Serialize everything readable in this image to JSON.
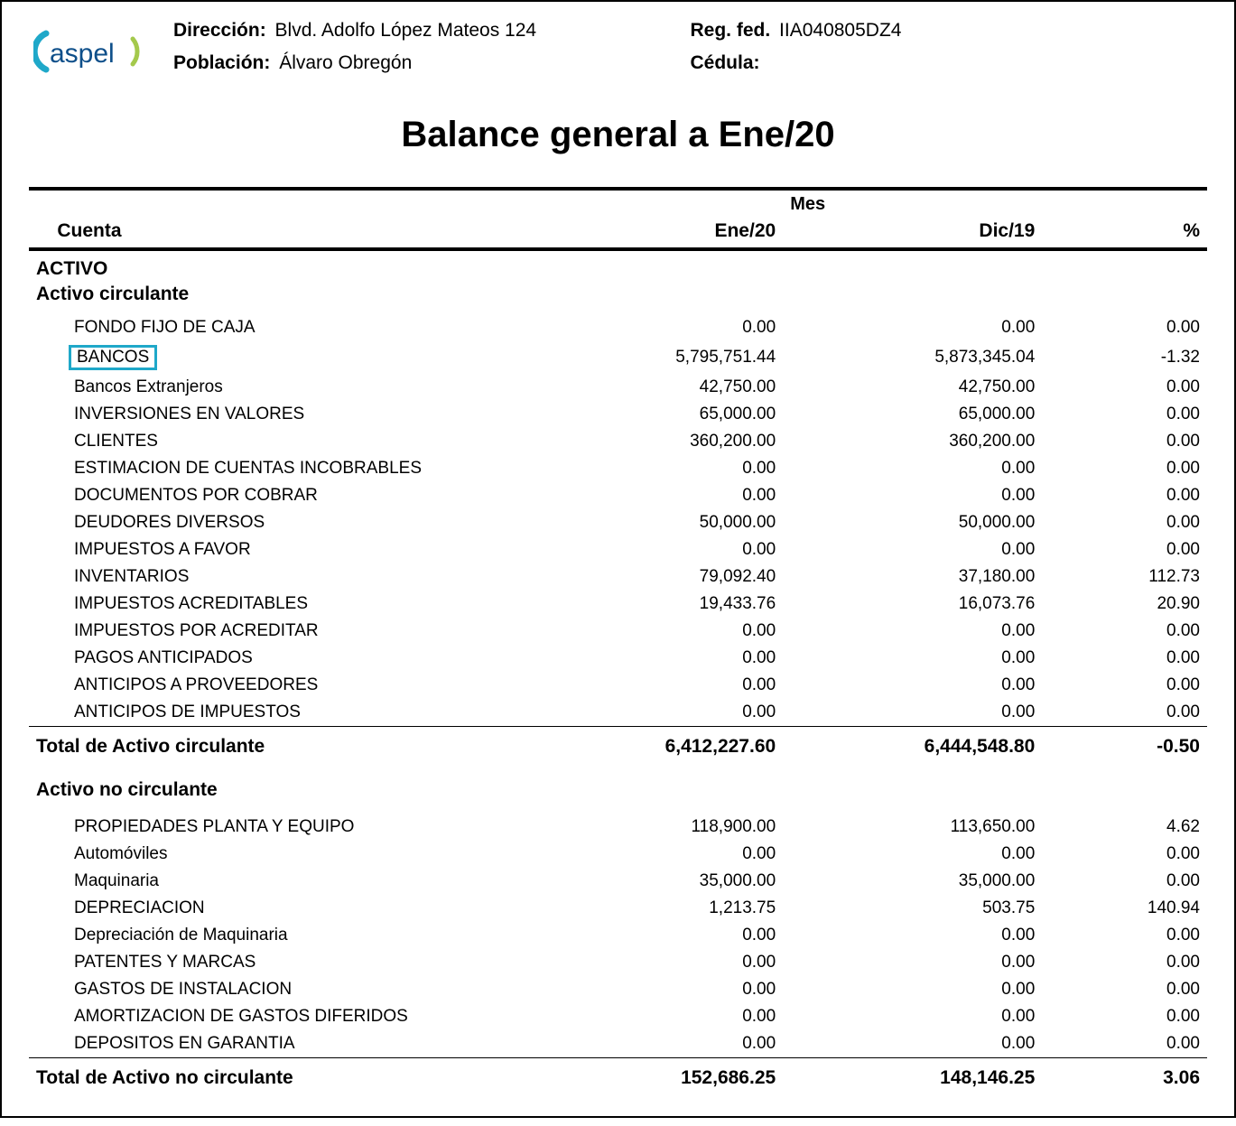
{
  "header": {
    "direccion_label": "Dirección:",
    "direccion_value": "Blvd. Adolfo López Mateos 124",
    "poblacion_label": "Población:",
    "poblacion_value": "Álvaro Obregón",
    "regfed_label": "Reg. fed.",
    "regfed_value": "IIA040805DZ4",
    "cedula_label": "Cédula:",
    "cedula_value": ""
  },
  "title": "Balance general  a  Ene/20",
  "columns": {
    "cuenta": "Cuenta",
    "mes": "Mes",
    "period1": "Ene/20",
    "period2": "Dic/19",
    "pct": "%"
  },
  "section_activo": "ACTIVO",
  "section_circ": "Activo circulante",
  "circ": [
    {
      "name": "FONDO FIJO DE CAJA",
      "v1": "0.00",
      "v2": "0.00",
      "pct": "0.00",
      "hl": false
    },
    {
      "name": "BANCOS",
      "v1": "5,795,751.44",
      "v2": "5,873,345.04",
      "pct": "-1.32",
      "hl": true
    },
    {
      "name": "Bancos Extranjeros",
      "v1": "42,750.00",
      "v2": "42,750.00",
      "pct": "0.00",
      "hl": false
    },
    {
      "name": "INVERSIONES EN VALORES",
      "v1": "65,000.00",
      "v2": "65,000.00",
      "pct": "0.00",
      "hl": false
    },
    {
      "name": "CLIENTES",
      "v1": "360,200.00",
      "v2": "360,200.00",
      "pct": "0.00",
      "hl": false
    },
    {
      "name": "ESTIMACION DE CUENTAS INCOBRABLES",
      "v1": "0.00",
      "v2": "0.00",
      "pct": "0.00",
      "hl": false
    },
    {
      "name": "DOCUMENTOS POR COBRAR",
      "v1": "0.00",
      "v2": "0.00",
      "pct": "0.00",
      "hl": false
    },
    {
      "name": "DEUDORES DIVERSOS",
      "v1": "50,000.00",
      "v2": "50,000.00",
      "pct": "0.00",
      "hl": false
    },
    {
      "name": "IMPUESTOS A FAVOR",
      "v1": "0.00",
      "v2": "0.00",
      "pct": "0.00",
      "hl": false
    },
    {
      "name": "INVENTARIOS",
      "v1": "79,092.40",
      "v2": "37,180.00",
      "pct": "112.73",
      "hl": false
    },
    {
      "name": "IMPUESTOS ACREDITABLES",
      "v1": "19,433.76",
      "v2": "16,073.76",
      "pct": "20.90",
      "hl": false
    },
    {
      "name": "IMPUESTOS POR ACREDITAR",
      "v1": "0.00",
      "v2": "0.00",
      "pct": "0.00",
      "hl": false
    },
    {
      "name": "PAGOS ANTICIPADOS",
      "v1": "0.00",
      "v2": "0.00",
      "pct": "0.00",
      "hl": false
    },
    {
      "name": "ANTICIPOS A PROVEEDORES",
      "v1": "0.00",
      "v2": "0.00",
      "pct": "0.00",
      "hl": false
    },
    {
      "name": "ANTICIPOS DE IMPUESTOS",
      "v1": "0.00",
      "v2": "0.00",
      "pct": "0.00",
      "hl": false
    }
  ],
  "total_circ": {
    "label": "Total de Activo circulante",
    "v1": "6,412,227.60",
    "v2": "6,444,548.80",
    "pct": "-0.50"
  },
  "section_nocirc": "Activo no circulante",
  "nocirc": [
    {
      "name": "PROPIEDADES PLANTA Y EQUIPO",
      "v1": "118,900.00",
      "v2": "113,650.00",
      "pct": "4.62"
    },
    {
      "name": "Automóviles",
      "v1": "0.00",
      "v2": "0.00",
      "pct": "0.00"
    },
    {
      "name": "Maquinaria",
      "v1": "35,000.00",
      "v2": "35,000.00",
      "pct": "0.00"
    },
    {
      "name": "DEPRECIACION",
      "v1": "1,213.75",
      "v2": "503.75",
      "pct": "140.94"
    },
    {
      "name": "Depreciación de Maquinaria",
      "v1": "0.00",
      "v2": "0.00",
      "pct": "0.00"
    },
    {
      "name": "PATENTES Y MARCAS",
      "v1": "0.00",
      "v2": "0.00",
      "pct": "0.00"
    },
    {
      "name": "GASTOS DE INSTALACION",
      "v1": "0.00",
      "v2": "0.00",
      "pct": "0.00"
    },
    {
      "name": "AMORTIZACION DE GASTOS DIFERIDOS",
      "v1": "0.00",
      "v2": "0.00",
      "pct": "0.00"
    },
    {
      "name": "DEPOSITOS EN GARANTIA",
      "v1": "0.00",
      "v2": "0.00",
      "pct": "0.00"
    }
  ],
  "total_nocirc": {
    "label": "Total de Activo no circulante",
    "v1": "152,686.25",
    "v2": "148,146.25",
    "pct": "3.06"
  },
  "style": {
    "highlight_border": "#1fa8c9",
    "text_color": "#000000",
    "bg": "#ffffff",
    "logo_colors": {
      "a_arc": "#1fa8c9",
      "letters": "#0e4f8a",
      "dot_arc": "#a4c94c"
    }
  }
}
